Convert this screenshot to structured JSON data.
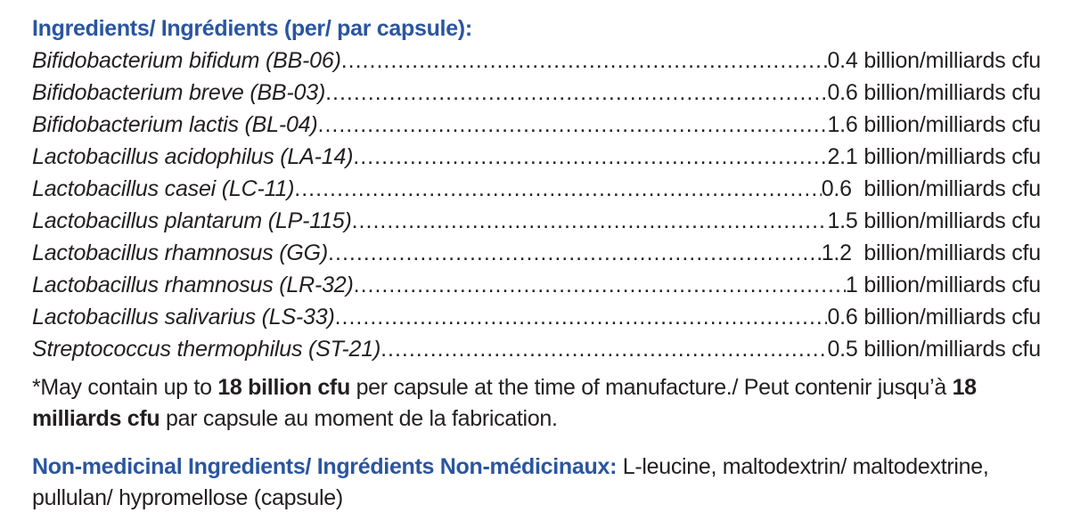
{
  "heading": "Ingredients/ Ingrédients (per/ par capsule):",
  "ingredients": [
    {
      "name": "Bifidobacterium bifidum (BB-06)",
      "amount": "0.4 billion/milliards cfu"
    },
    {
      "name": "Bifidobacterium breve (BB-03)",
      "amount": "0.6 billion/milliards cfu"
    },
    {
      "name": "Bifidobacterium lactis (BL-04)",
      "amount": "1.6 billion/milliards cfu"
    },
    {
      "name": "Lactobacillus acidophilus (LA-14)",
      "amount": "2.1 billion/milliards cfu"
    },
    {
      "name": "Lactobacillus casei (LC-11)",
      "amount": "0.6  billion/milliards cfu"
    },
    {
      "name": "Lactobacillus plantarum (LP-115)",
      "amount": "1.5 billion/milliards cfu"
    },
    {
      "name": "Lactobacillus rhamnosus (GG)",
      "amount": "1.2  billion/milliards cfu"
    },
    {
      "name": "Lactobacillus rhamnosus (LR-32)",
      "amount": "1 billion/milliards cfu"
    },
    {
      "name": "Lactobacillus salivarius (LS-33)",
      "amount": "0.6 billion/milliards cfu"
    },
    {
      "name": "Streptococcus thermophilus (ST-21)",
      "amount": "0.5 billion/milliards cfu"
    }
  ],
  "footnote": {
    "part1": "*May contain up to ",
    "bold1": "18 billion cfu",
    "part2": " per capsule at the time of manufacture./ Peut contenir jusqu’à ",
    "bold2": "18 milliards cfu",
    "part3": " par capsule au moment de la fabrication."
  },
  "non_medicinal": {
    "label": "Non-medicinal Ingredients/ Ingrédients Non-médicinaux:",
    "text": " L-leucine, maltodextrin/ maltodextrine, pullulan/ hypromellose (capsule)"
  },
  "colors": {
    "heading": "#2a55a0",
    "text": "#231f20"
  }
}
